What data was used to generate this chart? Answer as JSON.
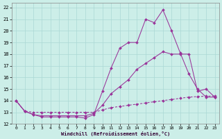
{
  "xlabel": "Windchill (Refroidissement éolien,°C)",
  "bg_color": "#cceee8",
  "grid_color": "#aad8d4",
  "line_color": "#993399",
  "xlim": [
    -0.5,
    23.5
  ],
  "ylim": [
    12,
    22.4
  ],
  "yticks": [
    12,
    13,
    14,
    15,
    16,
    17,
    18,
    19,
    20,
    21,
    22
  ],
  "xticks": [
    0,
    1,
    2,
    3,
    4,
    5,
    6,
    7,
    8,
    9,
    10,
    11,
    12,
    13,
    14,
    15,
    16,
    17,
    18,
    19,
    20,
    21,
    22,
    23
  ],
  "series1_x": [
    0,
    1,
    2,
    3,
    4,
    5,
    6,
    7,
    8,
    9,
    10,
    11,
    12,
    13,
    14,
    15,
    16,
    17,
    18,
    19,
    20,
    21,
    22,
    23
  ],
  "series1_y": [
    14.0,
    13.1,
    12.8,
    12.6,
    12.6,
    12.6,
    12.6,
    12.6,
    12.5,
    12.8,
    14.8,
    16.8,
    18.5,
    19.0,
    19.0,
    21.0,
    20.7,
    21.8,
    20.0,
    18.1,
    16.3,
    15.0,
    14.3,
    14.3
  ],
  "series2_x": [
    0,
    1,
    2,
    3,
    4,
    5,
    6,
    7,
    8,
    9,
    10,
    11,
    12,
    13,
    14,
    15,
    16,
    17,
    18,
    19,
    20,
    21,
    22,
    23
  ],
  "series2_y": [
    14.0,
    13.1,
    12.8,
    12.7,
    12.7,
    12.7,
    12.7,
    12.7,
    12.7,
    12.9,
    13.6,
    14.6,
    15.2,
    15.8,
    16.7,
    17.2,
    17.7,
    18.2,
    18.0,
    18.0,
    18.0,
    14.8,
    15.0,
    14.3
  ],
  "series3_x": [
    0,
    1,
    2,
    3,
    4,
    5,
    6,
    7,
    8,
    9,
    10,
    11,
    12,
    13,
    14,
    15,
    16,
    17,
    18,
    19,
    20,
    21,
    22,
    23
  ],
  "series3_y": [
    14.0,
    13.1,
    13.0,
    13.0,
    13.0,
    13.0,
    13.0,
    13.0,
    13.0,
    13.0,
    13.2,
    13.4,
    13.5,
    13.6,
    13.7,
    13.8,
    13.9,
    14.0,
    14.1,
    14.2,
    14.3,
    14.35,
    14.38,
    14.4
  ]
}
